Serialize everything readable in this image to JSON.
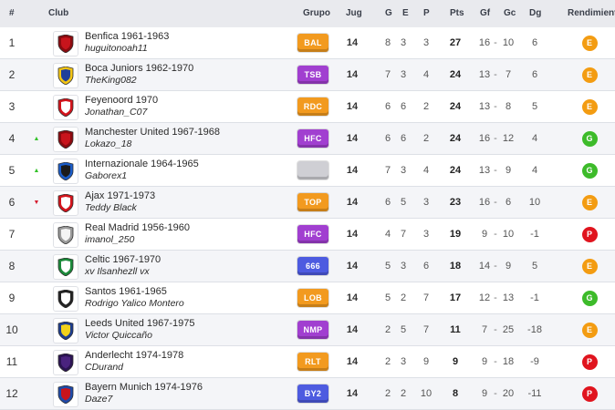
{
  "header": {
    "pos": "#",
    "club": "Club",
    "grupo": "Grupo",
    "jug": "Jug",
    "g": "G",
    "e": "E",
    "p": "P",
    "pts": "Pts",
    "gf": "Gf",
    "gc": "Gc",
    "dg": "Dg",
    "rendimiento": "Rendimiento"
  },
  "colors": {
    "badge_orange": "#f29a1f",
    "badge_purple": "#a13fd0",
    "badge_blue": "#4d5be0",
    "badge_silver": "#cfcfd4",
    "rend_E": "#f39c12",
    "rend_G": "#3dbb2a",
    "rend_P": "#e0141e"
  },
  "rows": [
    {
      "pos": "1",
      "trend": "none",
      "crest": "red-shield-icon",
      "club": "Benfica 1961-1963",
      "manager": "huguitonoah11",
      "grupo": "BAL",
      "grupo_color": "#f29a1f",
      "jug": "14",
      "g": "8",
      "e": "3",
      "p": "3",
      "pts": "27",
      "gf": "16",
      "gc": "10",
      "dg": "6",
      "rend": "E"
    },
    {
      "pos": "2",
      "trend": "none",
      "crest": "blue-yellow-shield-icon",
      "club": "Boca Juniors 1962-1970",
      "manager": "TheKing082",
      "grupo": "TSB",
      "grupo_color": "#a13fd0",
      "jug": "14",
      "g": "7",
      "e": "3",
      "p": "4",
      "pts": "24",
      "gf": "13",
      "gc": "7",
      "dg": "6",
      "rend": "E"
    },
    {
      "pos": "3",
      "trend": "none",
      "crest": "red-white-shield-icon",
      "club": "Feyenoord 1970",
      "manager": "Jonathan_C07",
      "grupo": "RDC",
      "grupo_color": "#f29a1f",
      "jug": "14",
      "g": "6",
      "e": "6",
      "p": "2",
      "pts": "24",
      "gf": "13",
      "gc": "8",
      "dg": "5",
      "rend": "E"
    },
    {
      "pos": "4",
      "trend": "up",
      "crest": "red-shield-icon",
      "club": "Manchester United 1967-1968",
      "manager": "Lokazo_18",
      "grupo": "HFC",
      "grupo_color": "#a13fd0",
      "jug": "14",
      "g": "6",
      "e": "6",
      "p": "2",
      "pts": "24",
      "gf": "16",
      "gc": "12",
      "dg": "4",
      "rend": "G"
    },
    {
      "pos": "5",
      "trend": "up",
      "crest": "blue-black-shield-icon",
      "club": "Internazionale 1964-1965",
      "manager": "Gaborex1",
      "grupo": "",
      "grupo_color": "#cfcfd4",
      "jug": "14",
      "g": "7",
      "e": "3",
      "p": "4",
      "pts": "24",
      "gf": "13",
      "gc": "9",
      "dg": "4",
      "rend": "G"
    },
    {
      "pos": "6",
      "trend": "down",
      "crest": "red-white-shield-icon",
      "club": "Ajax 1971-1973",
      "manager": "Teddy Black",
      "grupo": "TOP",
      "grupo_color": "#f29a1f",
      "jug": "14",
      "g": "6",
      "e": "5",
      "p": "3",
      "pts": "23",
      "gf": "16",
      "gc": "6",
      "dg": "10",
      "rend": "E"
    },
    {
      "pos": "7",
      "trend": "none",
      "crest": "white-shield-icon",
      "club": "Real Madrid 1956-1960",
      "manager": "imanol_250",
      "grupo": "HFC",
      "grupo_color": "#a13fd0",
      "jug": "14",
      "g": "4",
      "e": "7",
      "p": "3",
      "pts": "19",
      "gf": "9",
      "gc": "10",
      "dg": "-1",
      "rend": "P"
    },
    {
      "pos": "8",
      "trend": "none",
      "crest": "green-white-shield-icon",
      "club": "Celtic 1967-1970",
      "manager": "xv Ilsanhezll vx",
      "grupo": "666",
      "grupo_color": "#4d5be0",
      "jug": "14",
      "g": "5",
      "e": "3",
      "p": "6",
      "pts": "18",
      "gf": "14",
      "gc": "9",
      "dg": "5",
      "rend": "E"
    },
    {
      "pos": "9",
      "trend": "none",
      "crest": "black-white-shield-icon",
      "club": "Santos 1961-1965",
      "manager": "Rodrigo Yalico Montero",
      "grupo": "LOB",
      "grupo_color": "#f29a1f",
      "jug": "14",
      "g": "5",
      "e": "2",
      "p": "7",
      "pts": "17",
      "gf": "12",
      "gc": "13",
      "dg": "-1",
      "rend": "G"
    },
    {
      "pos": "10",
      "trend": "none",
      "crest": "yellow-blue-shield-icon",
      "club": "Leeds United 1967-1975",
      "manager": "Victor Quiccaño",
      "grupo": "NMP",
      "grupo_color": "#a13fd0",
      "jug": "14",
      "g": "2",
      "e": "5",
      "p": "7",
      "pts": "11",
      "gf": "7",
      "gc": "25",
      "dg": "-18",
      "rend": "E"
    },
    {
      "pos": "11",
      "trend": "none",
      "crest": "purple-shield-icon",
      "club": "Anderlecht 1974-1978",
      "manager": "CDurand",
      "grupo": "RLT",
      "grupo_color": "#f29a1f",
      "jug": "14",
      "g": "2",
      "e": "3",
      "p": "9",
      "pts": "9",
      "gf": "9",
      "gc": "18",
      "dg": "-9",
      "rend": "P"
    },
    {
      "pos": "12",
      "trend": "none",
      "crest": "red-blue-shield-icon",
      "club": "Bayern Munich 1974-1976",
      "manager": "Daze7",
      "grupo": "BY2",
      "grupo_color": "#4d5be0",
      "jug": "14",
      "g": "2",
      "e": "2",
      "p": "10",
      "pts": "8",
      "gf": "9",
      "gc": "20",
      "dg": "-11",
      "rend": "P"
    }
  ]
}
